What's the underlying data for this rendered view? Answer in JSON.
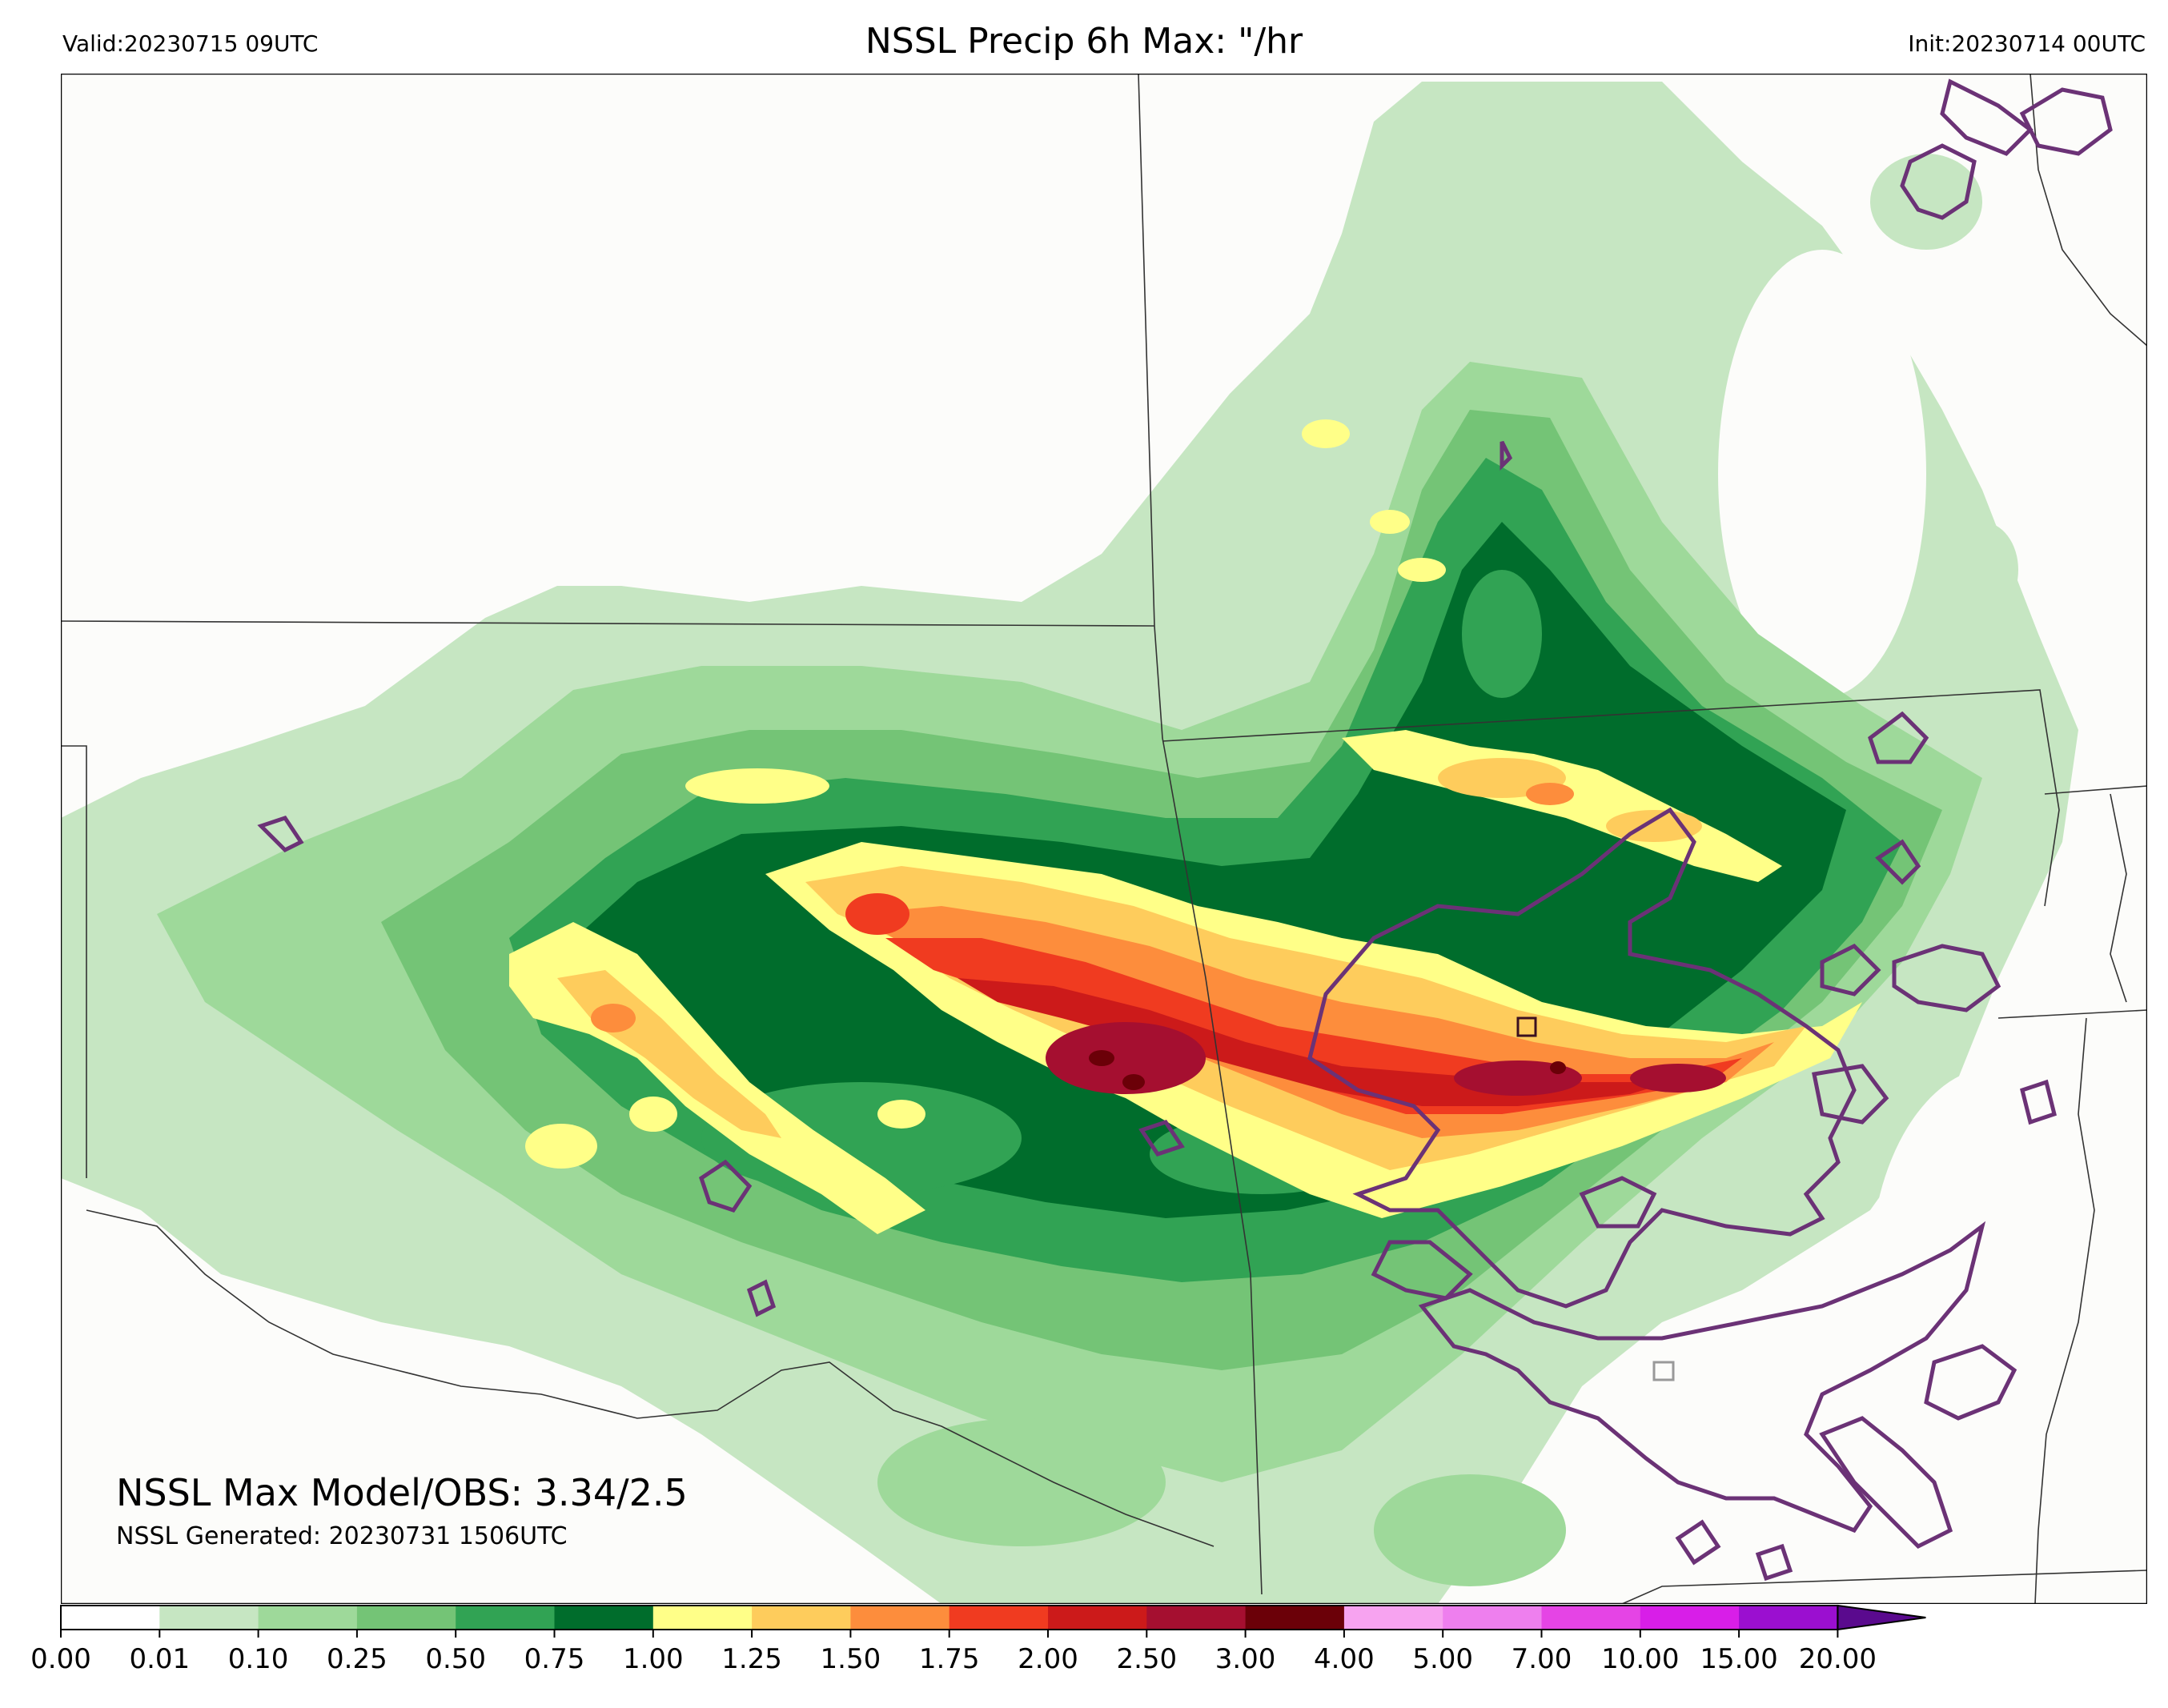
{
  "header": {
    "valid_label": "Valid:20230715 09UTC",
    "title": "NSSL Precip 6h Max: \"/hr",
    "init_label": "Init:20230714 00UTC"
  },
  "stats": {
    "max_model_obs": "NSSL Max Model/OBS: 3.34/2.5",
    "generated": "NSSL Generated: 20230731 1506UTC"
  },
  "colorbar": {
    "ticks": [
      "0.00",
      "0.01",
      "0.10",
      "0.25",
      "0.50",
      "0.75",
      "1.00",
      "1.25",
      "1.50",
      "1.75",
      "2.00",
      "2.50",
      "3.00",
      "4.00",
      "5.00",
      "7.00",
      "10.00",
      "15.00",
      "20.00"
    ],
    "colors": [
      "#ffffff",
      "#c6e6c2",
      "#9ed99a",
      "#74c476",
      "#31a354",
      "#006d2c",
      "#ffff88",
      "#fecc5c",
      "#fd8d3c",
      "#f03b20",
      "#cc1a1a",
      "#a50f30",
      "#6b0008",
      "#f7a3f0",
      "#ee7fee",
      "#e544e5",
      "#d81ee8",
      "#9b0fd0"
    ],
    "extend_color": "#5a0a8e"
  },
  "map": {
    "background": "#fcfcfa",
    "obs_contour_color": "#6b3276",
    "box_color": "#999999"
  }
}
